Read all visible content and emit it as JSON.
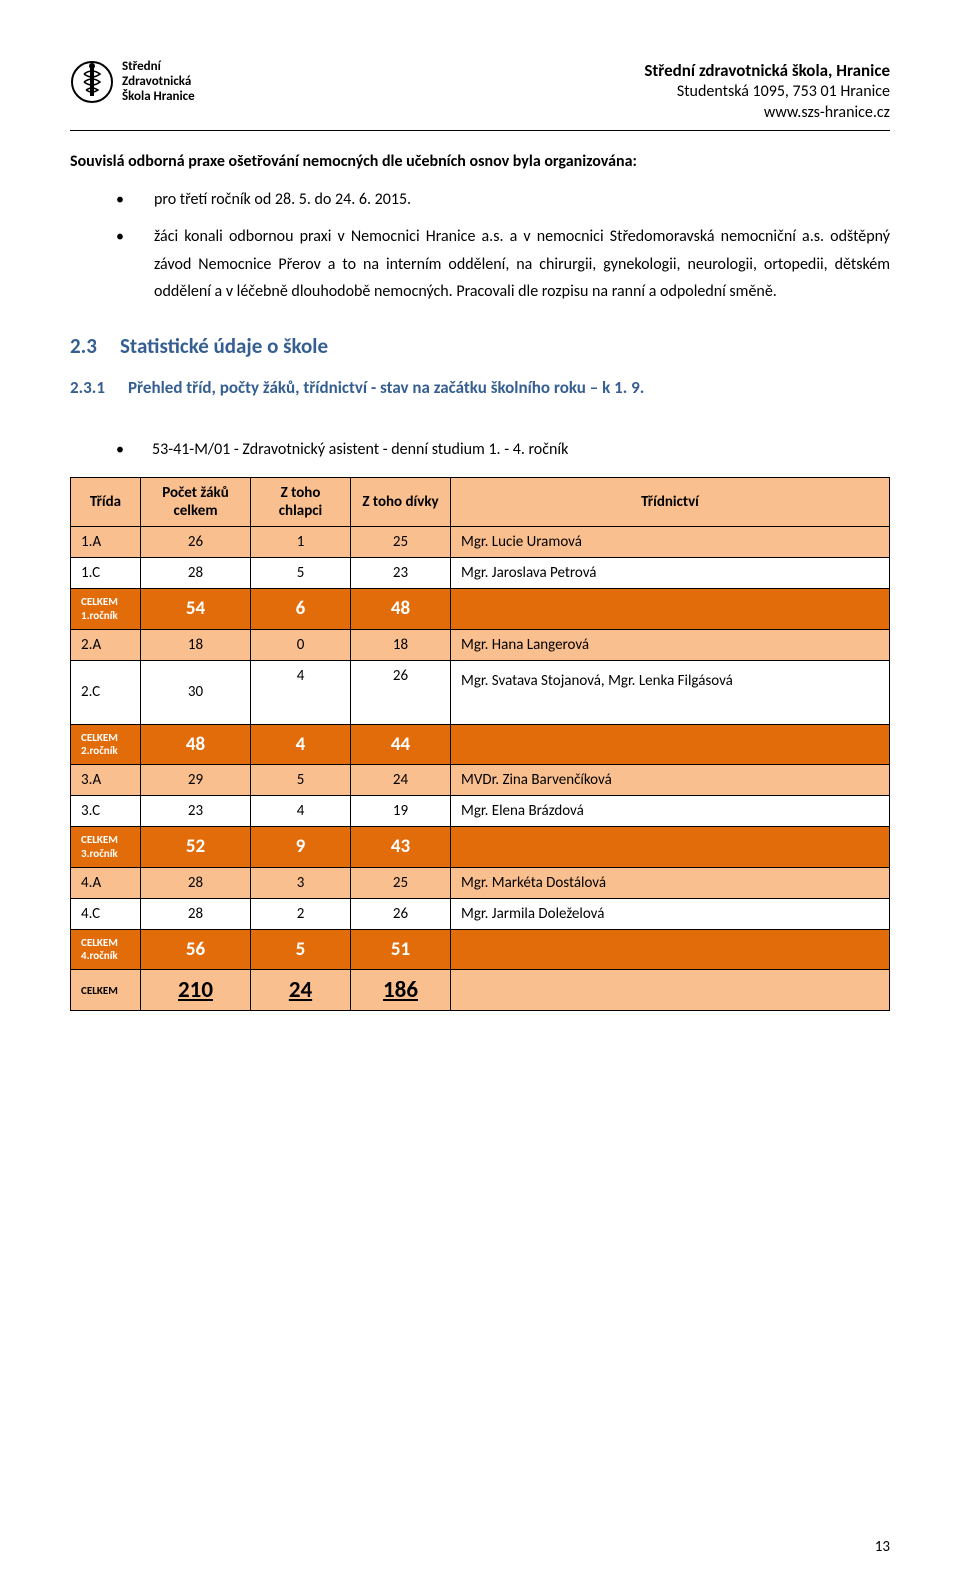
{
  "header": {
    "logo_text_l1": "Střední",
    "logo_text_l2": "Zdravotnická",
    "logo_text_l3": "Škola Hranice",
    "right_l1": "Střední zdravotnická škola, Hranice",
    "right_l2": "Studentská 1095, 753 01 Hranice",
    "right_l3": "www.szs-hranice.cz"
  },
  "para1": "Souvislá odborná praxe ošetřování nemocných dle učebních osnov byla organizována:",
  "bul": {
    "b1": "pro třetí ročník od 28. 5. do 24. 6. 2015.",
    "b2": "žáci konali odbornou praxi v Nemocnici Hranice a.s.  a v nemocnici Středomoravská nemocniční a.s. odštěpný závod Nemocnice Přerov a to na interním oddělení, na chirurgii, gynekologii, neurologii, ortopedii, dětském oddělení a v léčebně dlouhodobě nemocných. Pracovali dle rozpisu na ranní a odpolední směně."
  },
  "h2": {
    "num": "2.3",
    "text": "Statistické údaje o škole"
  },
  "h3": {
    "num": "2.3.1",
    "text": "Přehled tříd, počty žáků, třídnictví - stav na začátku školního roku – k 1. 9."
  },
  "context_line": "53-41-M/01   - Zdravotnický asistent -   denní studium 1. - 4. ročník",
  "table": {
    "headers": {
      "c1": "Třída",
      "c2": "Počet žáků celkem",
      "c3": "Z toho chlapci",
      "c4": "Z toho dívky",
      "c5": "Třídnictví"
    },
    "rows": [
      {
        "type": "peach",
        "c1": "1.A",
        "c2": "26",
        "c3": "1",
        "c4": "25",
        "c5": "Mgr. Lucie Uramová"
      },
      {
        "type": "norm",
        "c1": "1.C",
        "c2": "28",
        "c3": "5",
        "c4": "23",
        "c5": "Mgr. Jaroslava Petrová"
      },
      {
        "type": "orange",
        "c1a": "CELKEM",
        "c1b": "1.ročník",
        "c2": "54",
        "c3": "6",
        "c4": "48",
        "c5": ""
      },
      {
        "type": "peach",
        "c1": "2.A",
        "c2": "18",
        "c3": "0",
        "c4": "18",
        "c5": "Mgr. Hana Langerová"
      },
      {
        "type": "tall",
        "c1": "2.C",
        "c2": "30",
        "c3": "4",
        "c4": "26",
        "c5": "Mgr. Svatava Stojanová, Mgr. Lenka Filgásová"
      },
      {
        "type": "orange",
        "c1a": "CELKEM",
        "c1b": "2.ročník",
        "c2": "48",
        "c3": "4",
        "c4": "44",
        "c5": ""
      },
      {
        "type": "peach",
        "c1": "3.A",
        "c2": "29",
        "c3": "5",
        "c4": "24",
        "c5": "MVDr. Zina Barvenčíková"
      },
      {
        "type": "norm",
        "c1": "3.C",
        "c2": "23",
        "c3": "4",
        "c4": "19",
        "c5": "Mgr. Elena Brázdová"
      },
      {
        "type": "orange",
        "c1a": "CELKEM",
        "c1b": "3.ročník",
        "c2": "52",
        "c3": "9",
        "c4": "43",
        "c5": ""
      },
      {
        "type": "peach",
        "c1": "4.A",
        "c2": "28",
        "c3": "3",
        "c4": "25",
        "c5": "Mgr. Markéta Dostálová"
      },
      {
        "type": "norm",
        "c1": "4.C",
        "c2": "28",
        "c3": "2",
        "c4": "26",
        "c5": "Mgr. Jarmila Doleželová"
      },
      {
        "type": "orange",
        "c1a": "CELKEM",
        "c1b": "4.ročník",
        "c2": "56",
        "c3": "5",
        "c4": "51",
        "c5": ""
      },
      {
        "type": "total",
        "c1": "CELKEM",
        "c2": "210",
        "c3": "24",
        "c4": "186",
        "c5": ""
      }
    ],
    "colwidths": [
      "70",
      "110",
      "100",
      "100",
      "auto"
    ]
  },
  "pageno": "13",
  "colors": {
    "heading": "#365f91",
    "peach": "#fabf8f",
    "orange": "#e36c0a"
  }
}
